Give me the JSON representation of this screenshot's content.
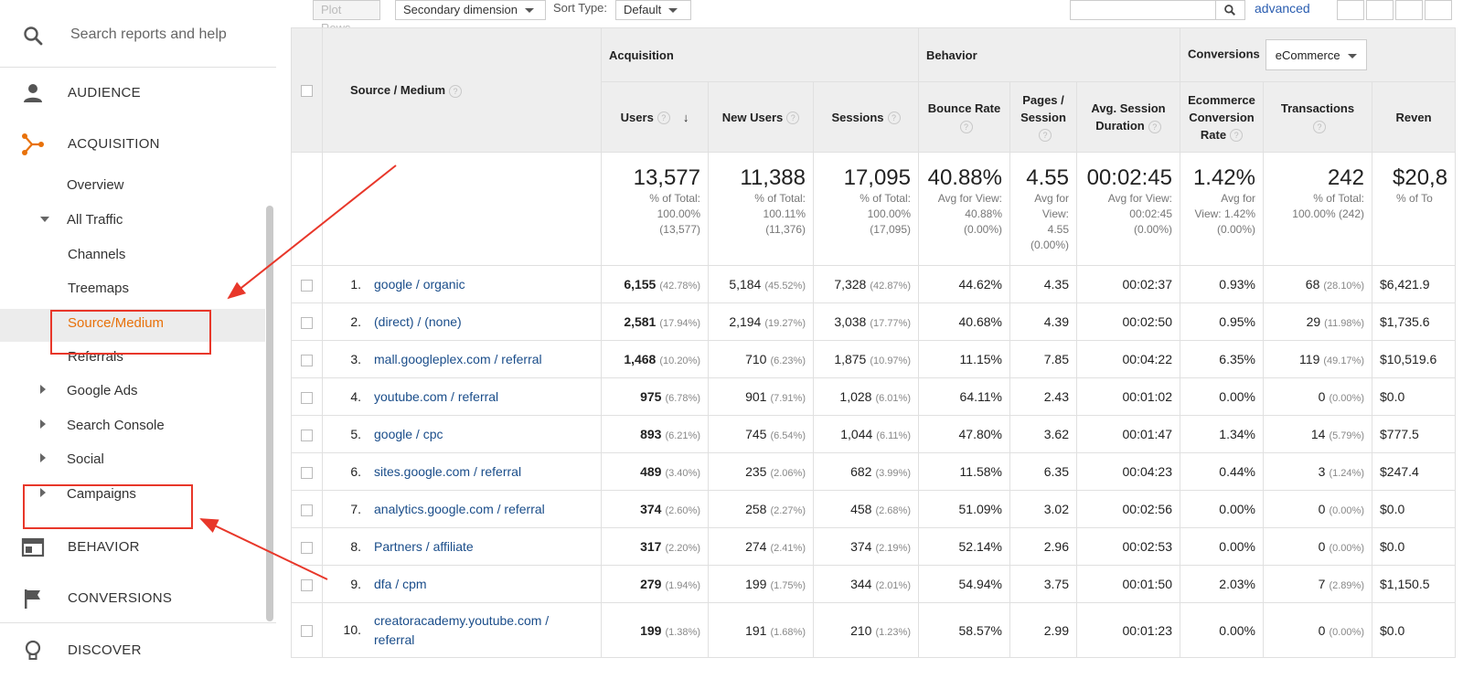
{
  "sidebar": {
    "search_placeholder": "Search reports and help",
    "sections": {
      "audience": "AUDIENCE",
      "acquisition": "ACQUISITION",
      "behavior": "BEHAVIOR",
      "conversions": "CONVERSIONS",
      "discover": "DISCOVER"
    },
    "acquisition_items": {
      "overview": "Overview",
      "all_traffic": "All Traffic",
      "channels": "Channels",
      "treemaps": "Treemaps",
      "source_medium": "Source/Medium",
      "referrals": "Referrals",
      "google_ads": "Google Ads",
      "search_console": "Search Console",
      "social": "Social",
      "campaigns": "Campaigns"
    },
    "accent_color": "#e8710a"
  },
  "toolbar": {
    "plot_rows": "Plot Rows",
    "secondary_dimension": "Secondary dimension",
    "sort_type_label": "Sort Type:",
    "sort_type_value": "Default",
    "advanced": "advanced"
  },
  "table": {
    "dimension_header": "Source / Medium",
    "groups": {
      "acquisition": "Acquisition",
      "behavior": "Behavior",
      "conversions": "Conversions",
      "conversions_select": "eCommerce"
    },
    "columns": {
      "users": "Users",
      "new_users": "New Users",
      "sessions": "Sessions",
      "bounce_rate": "Bounce Rate",
      "pages_session": "Pages / Session",
      "avg_session_duration": "Avg. Session Duration",
      "ecommerce_conv_rate": "Ecommerce Conversion Rate",
      "transactions": "Transactions",
      "revenue": "Reven"
    },
    "totals": {
      "users": "13,577",
      "users_l1": "% of Total:",
      "users_l2": "100.00%",
      "users_l3": "(13,577)",
      "new_users": "11,388",
      "new_users_l1": "% of Total:",
      "new_users_l2": "100.11%",
      "new_users_l3": "(11,376)",
      "sessions": "17,095",
      "sessions_l1": "% of Total:",
      "sessions_l2": "100.00%",
      "sessions_l3": "(17,095)",
      "bounce_rate": "40.88%",
      "bounce_l1": "Avg for View:",
      "bounce_l2": "40.88%",
      "bounce_l3": "(0.00%)",
      "pages": "4.55",
      "pages_l1": "Avg for",
      "pages_l2": "View:",
      "pages_l3": "4.55",
      "pages_l4": "(0.00%)",
      "duration": "00:02:45",
      "duration_l1": "Avg for View:",
      "duration_l2": "00:02:45",
      "duration_l3": "(0.00%)",
      "conv_rate": "1.42%",
      "conv_l1": "Avg for",
      "conv_l2": "View: 1.42%",
      "conv_l3": "(0.00%)",
      "transactions": "242",
      "trans_l1": "% of Total:",
      "trans_l2": "100.00% (242)",
      "revenue": "$20,8",
      "rev_l1": "% of To"
    },
    "rows": [
      {
        "idx": "1.",
        "source": "google / organic",
        "users": "6,155",
        "users_pct": "(42.78%)",
        "new_users": "5,184",
        "new_users_pct": "(45.52%)",
        "sessions": "7,328",
        "sessions_pct": "(42.87%)",
        "bounce": "44.62%",
        "pages": "4.35",
        "duration": "00:02:37",
        "conv": "0.93%",
        "trans": "68",
        "trans_pct": "(28.10%)",
        "revenue": "$6,421.9"
      },
      {
        "idx": "2.",
        "source": "(direct) / (none)",
        "users": "2,581",
        "users_pct": "(17.94%)",
        "new_users": "2,194",
        "new_users_pct": "(19.27%)",
        "sessions": "3,038",
        "sessions_pct": "(17.77%)",
        "bounce": "40.68%",
        "pages": "4.39",
        "duration": "00:02:50",
        "conv": "0.95%",
        "trans": "29",
        "trans_pct": "(11.98%)",
        "revenue": "$1,735.6"
      },
      {
        "idx": "3.",
        "source": "mall.googleplex.com / referral",
        "users": "1,468",
        "users_pct": "(10.20%)",
        "new_users": "710",
        "new_users_pct": "(6.23%)",
        "sessions": "1,875",
        "sessions_pct": "(10.97%)",
        "bounce": "11.15%",
        "pages": "7.85",
        "duration": "00:04:22",
        "conv": "6.35%",
        "trans": "119",
        "trans_pct": "(49.17%)",
        "revenue": "$10,519.6"
      },
      {
        "idx": "4.",
        "source": "youtube.com / referral",
        "users": "975",
        "users_pct": "(6.78%)",
        "new_users": "901",
        "new_users_pct": "(7.91%)",
        "sessions": "1,028",
        "sessions_pct": "(6.01%)",
        "bounce": "64.11%",
        "pages": "2.43",
        "duration": "00:01:02",
        "conv": "0.00%",
        "trans": "0",
        "trans_pct": "(0.00%)",
        "revenue": "$0.0"
      },
      {
        "idx": "5.",
        "source": "google / cpc",
        "users": "893",
        "users_pct": "(6.21%)",
        "new_users": "745",
        "new_users_pct": "(6.54%)",
        "sessions": "1,044",
        "sessions_pct": "(6.11%)",
        "bounce": "47.80%",
        "pages": "3.62",
        "duration": "00:01:47",
        "conv": "1.34%",
        "trans": "14",
        "trans_pct": "(5.79%)",
        "revenue": "$777.5"
      },
      {
        "idx": "6.",
        "source": "sites.google.com / referral",
        "users": "489",
        "users_pct": "(3.40%)",
        "new_users": "235",
        "new_users_pct": "(2.06%)",
        "sessions": "682",
        "sessions_pct": "(3.99%)",
        "bounce": "11.58%",
        "pages": "6.35",
        "duration": "00:04:23",
        "conv": "0.44%",
        "trans": "3",
        "trans_pct": "(1.24%)",
        "revenue": "$247.4"
      },
      {
        "idx": "7.",
        "source": "analytics.google.com / referral",
        "users": "374",
        "users_pct": "(2.60%)",
        "new_users": "258",
        "new_users_pct": "(2.27%)",
        "sessions": "458",
        "sessions_pct": "(2.68%)",
        "bounce": "51.09%",
        "pages": "3.02",
        "duration": "00:02:56",
        "conv": "0.00%",
        "trans": "0",
        "trans_pct": "(0.00%)",
        "revenue": "$0.0"
      },
      {
        "idx": "8.",
        "source": "Partners / affiliate",
        "users": "317",
        "users_pct": "(2.20%)",
        "new_users": "274",
        "new_users_pct": "(2.41%)",
        "sessions": "374",
        "sessions_pct": "(2.19%)",
        "bounce": "52.14%",
        "pages": "2.96",
        "duration": "00:02:53",
        "conv": "0.00%",
        "trans": "0",
        "trans_pct": "(0.00%)",
        "revenue": "$0.0"
      },
      {
        "idx": "9.",
        "source": "dfa / cpm",
        "users": "279",
        "users_pct": "(1.94%)",
        "new_users": "199",
        "new_users_pct": "(1.75%)",
        "sessions": "344",
        "sessions_pct": "(2.01%)",
        "bounce": "54.94%",
        "pages": "3.75",
        "duration": "00:01:50",
        "conv": "2.03%",
        "trans": "7",
        "trans_pct": "(2.89%)",
        "revenue": "$1,150.5"
      },
      {
        "idx": "10.",
        "source": "creatoracademy.youtube.com / referral",
        "users": "199",
        "users_pct": "(1.38%)",
        "new_users": "191",
        "new_users_pct": "(1.68%)",
        "sessions": "210",
        "sessions_pct": "(1.23%)",
        "bounce": "58.57%",
        "pages": "2.99",
        "duration": "00:01:23",
        "conv": "0.00%",
        "trans": "0",
        "trans_pct": "(0.00%)",
        "revenue": "$0.0"
      }
    ]
  },
  "annotation_color": "#e8372a"
}
